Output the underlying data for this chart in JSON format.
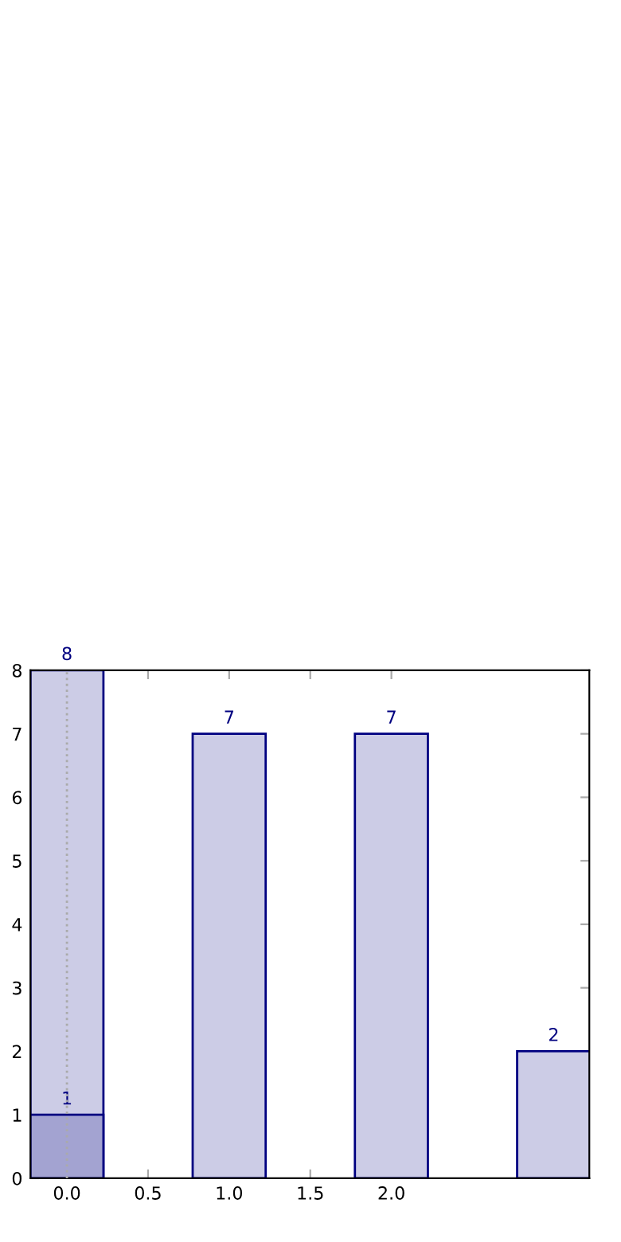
{
  "chart_data": {
    "type": "bar",
    "x": [
      0,
      1,
      2,
      3
    ],
    "series": [
      {
        "color": "#cccce6",
        "values": [
          8,
          7,
          7,
          2
        ]
      },
      {
        "color": "#a3a3d1",
        "values": [
          1,
          null,
          null,
          null
        ]
      }
    ],
    "xlim": [
      -0.225,
      3.22
    ],
    "ylim": [
      0,
      8
    ],
    "xticks": [
      {
        "value": 0,
        "label": "0.0"
      },
      {
        "value": 0.5,
        "label": "0.5"
      },
      {
        "value": 1,
        "label": "1.0"
      },
      {
        "value": 1.5,
        "label": "1.5"
      },
      {
        "value": 2,
        "label": "2.0"
      }
    ],
    "yticks": [
      0,
      1,
      2,
      3,
      4,
      5,
      6,
      7,
      8
    ],
    "ref_lines": [
      {
        "axis": "x",
        "value": 0,
        "color": "#aaaaaa",
        "line_style": "dotted"
      }
    ],
    "data_labels": true,
    "grid": false,
    "legend": false
  }
}
